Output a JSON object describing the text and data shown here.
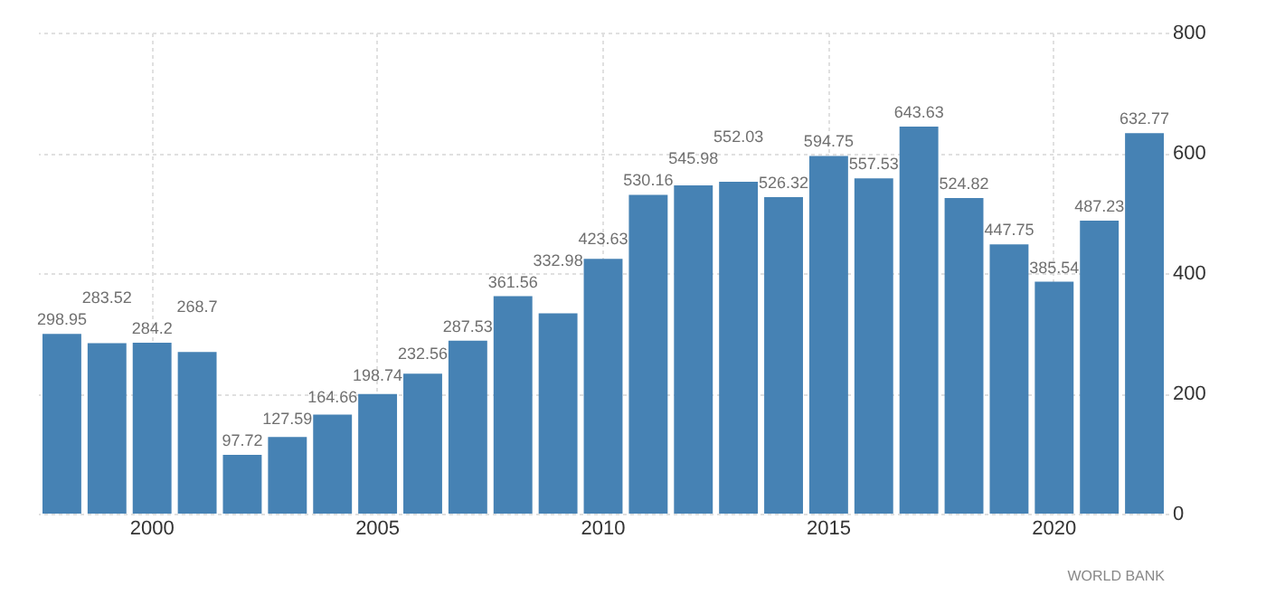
{
  "chart_data": {
    "type": "bar",
    "categories": [
      null,
      null,
      "2000",
      null,
      null,
      null,
      null,
      "2005",
      null,
      null,
      null,
      null,
      "2010",
      null,
      null,
      null,
      null,
      "2015",
      null,
      null,
      null,
      null,
      "2020",
      null,
      null
    ],
    "values": [
      298.95,
      283.52,
      284.2,
      268.7,
      97.72,
      127.59,
      164.66,
      198.74,
      232.56,
      287.53,
      361.56,
      332.98,
      423.63,
      530.16,
      545.98,
      552.03,
      526.32,
      594.75,
      557.53,
      643.63,
      524.82,
      447.75,
      385.54,
      487.23,
      632.77
    ],
    "color": "#4682b4",
    "ylim": [
      0,
      800
    ],
    "yticks": [
      0,
      200,
      400,
      600,
      800
    ],
    "grid": true,
    "data_labels": true,
    "annotations": [
      "WORLD BANK"
    ]
  }
}
